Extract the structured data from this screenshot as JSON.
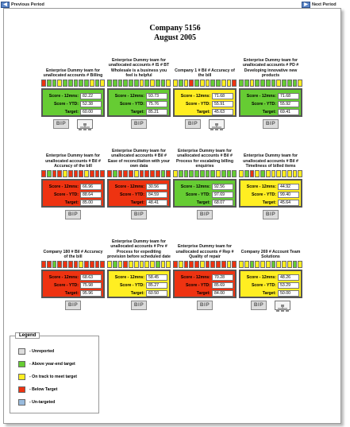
{
  "nav": {
    "prev_label": "Previous Period",
    "next_label": "Next Period",
    "prev_icon": "arrow-left-icon",
    "next_icon": "arrow-right-icon"
  },
  "header": {
    "title": "Company 5156",
    "period": "August 2005"
  },
  "colors": {
    "green": "#66cc33",
    "yellow": "#ffee22",
    "red": "#ee3311",
    "grey": "#dddddd",
    "blue": "#99bbdd"
  },
  "labels": {
    "score_12": "Score - 12mns:",
    "score_ytd": "Score - YTD:",
    "target": "Target:",
    "bip": "BIP"
  },
  "cards": [
    {
      "name": "Enterprise Dummy team for unallocated accounts # Billing",
      "status": "green",
      "score12": "82.22",
      "ytd": "52.38",
      "target": "60.00",
      "org": true,
      "trend": [
        "red",
        "green",
        "green",
        "yellow",
        "green",
        "green",
        "green",
        "green",
        "green",
        "yellow",
        "green",
        "yellow"
      ]
    },
    {
      "name": "Enterprise Dummy team for unallocated accounts # IS # BT Wholesale is a business you feel is helpful",
      "status": "green",
      "score12": "93.73",
      "ytd": "75.76",
      "target": "85.21",
      "org": false,
      "trend": [
        "green",
        "green",
        "green",
        "green",
        "green",
        "green",
        "yellow",
        "green",
        "yellow",
        "green",
        "green",
        "yellow"
      ]
    },
    {
      "name": "Company 1 # Bil # Accuracy of the bill",
      "status": "yellow",
      "score12": "71.68",
      "ytd": "55.91",
      "target": "45.63",
      "org": true,
      "trend": [
        "yellow",
        "green",
        "yellow",
        "red",
        "green",
        "yellow",
        "yellow",
        "green",
        "green",
        "yellow",
        "yellow",
        "red"
      ]
    },
    {
      "name": "Enterprise Dummy team for unallocated accounts # PD # Developing innovative new products",
      "status": "green",
      "score12": "71.68",
      "ytd": "55.92",
      "target": "69.41",
      "org": false,
      "trend": [
        "green",
        "green",
        "yellow",
        "green",
        "green",
        "green",
        "green",
        "yellow",
        "green",
        "green",
        "green",
        "yellow"
      ]
    },
    {
      "name": "Enterprise Dummy team for unallocated accounts # Bil # Accuracy of the bill",
      "status": "red",
      "score12": "66.96",
      "ytd": "88.64",
      "target": "85.00",
      "org": false,
      "trend": [
        "red",
        "green",
        "red",
        "red",
        "yellow",
        "red",
        "red",
        "red",
        "yellow",
        "red",
        "red",
        "red"
      ]
    },
    {
      "name": "Enterprise Dummy team for unallocated accounts # Bil # Ease of reconciliation with your own data",
      "status": "red",
      "score12": "30.56",
      "ytd": "84.59",
      "target": "48.41",
      "org": false,
      "trend": [
        "red",
        "green",
        "red",
        "red",
        "red",
        "yellow",
        "red",
        "red",
        "red",
        "red",
        "green",
        "red"
      ]
    },
    {
      "name": "Enterprise Dummy team for unallocated accounts # Bil # Process for escalating billing enquiries",
      "status": "green",
      "score12": "92.56",
      "ytd": "97.69",
      "target": "68.07",
      "org": false,
      "trend": [
        "yellow",
        "green",
        "green",
        "green",
        "green",
        "green",
        "green",
        "green",
        "yellow",
        "green",
        "green",
        "green"
      ]
    },
    {
      "name": "Enterprise Dummy team for unallocated accounts # Bil # Timeliness of billed items",
      "status": "yellow",
      "score12": "44.92",
      "ytd": "99.40",
      "target": "45.64",
      "org": false,
      "trend": [
        "yellow",
        "green",
        "red",
        "yellow",
        "green",
        "yellow",
        "yellow",
        "yellow",
        "yellow",
        "yellow",
        "yellow",
        "yellow"
      ]
    },
    {
      "name": "Company 180 # Bil # Accuracy of the bill",
      "status": "red",
      "score12": "68.63",
      "ytd": "75.98",
      "target": "95.96",
      "org": false,
      "trend": [
        "red",
        "red",
        "green",
        "red",
        "red",
        "red",
        "red",
        "yellow",
        "red",
        "red",
        "red",
        "red"
      ]
    },
    {
      "name": "Enterprise Dummy team for unallocated accounts # Prv # Process for expediting provision before scheduled date",
      "status": "yellow",
      "score12": "58.45",
      "ytd": "85.27",
      "target": "60.50",
      "org": false,
      "trend": [
        "yellow",
        "green",
        "yellow",
        "red",
        "yellow",
        "yellow",
        "yellow",
        "yellow",
        "yellow",
        "green",
        "yellow",
        "yellow"
      ]
    },
    {
      "name": "Enterprise Dummy team for unallocated accounts # Rep # Quality of repair",
      "status": "red",
      "score12": "70.28",
      "ytd": "85.69",
      "target": "84.00",
      "org": false,
      "trend": [
        "red",
        "yellow",
        "red",
        "red",
        "red",
        "yellow",
        "red",
        "red",
        "red",
        "red",
        "yellow",
        "red"
      ]
    },
    {
      "name": "Company 269 # Account Team Solutions",
      "status": "yellow",
      "score12": "48.26",
      "ytd": "53.29",
      "target": "50.00",
      "org": true,
      "trend": [
        "yellow",
        "yellow",
        "green",
        "yellow",
        "yellow",
        "yellow",
        "green",
        "yellow",
        "yellow",
        "yellow",
        "green",
        "yellow"
      ]
    }
  ],
  "legend": {
    "title": "Legend",
    "items": [
      {
        "color": "grey",
        "label": "-   Unreported"
      },
      {
        "color": "green",
        "label": "-   Above year-end target"
      },
      {
        "color": "yellow",
        "label": "-   On track to meet target"
      },
      {
        "color": "red",
        "label": "-   Below Target"
      },
      {
        "color": "blue",
        "label": "-   Un-targeted"
      }
    ]
  }
}
